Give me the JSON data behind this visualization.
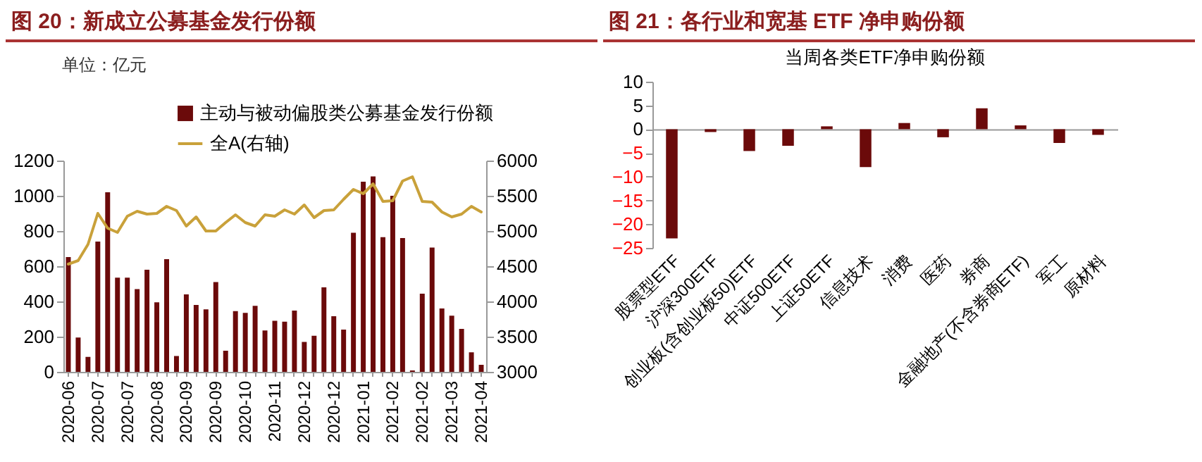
{
  "chart_data": [
    {
      "type": "bar",
      "title": "图 20：新成立公募基金发行份额",
      "annotations": [
        "单位：亿元"
      ],
      "categories": [
        "2020-06",
        null,
        null,
        "2020-07",
        null,
        null,
        "2020-07",
        null,
        null,
        "2020-08",
        null,
        null,
        "2020-09",
        null,
        null,
        "2020-09",
        null,
        null,
        "2020-10",
        null,
        null,
        "2020-11",
        null,
        null,
        "2020-12",
        null,
        null,
        "2020-12",
        null,
        null,
        "2021-01",
        null,
        null,
        "2021-02",
        null,
        null,
        "2021-02",
        null,
        null,
        "2021-03",
        null,
        null,
        "2021-04"
      ],
      "ylim": [
        0,
        1200
      ],
      "yticks": [
        0,
        200,
        400,
        600,
        800,
        1000,
        1200
      ],
      "y2lim": [
        3000,
        6000
      ],
      "y2ticks": [
        3000,
        3500,
        4000,
        4500,
        5000,
        5500,
        6000
      ],
      "legend": "top",
      "series": [
        {
          "name": "主动与被动偏股类公募基金发行份额",
          "color": "#6b0a0a",
          "values": [
            652,
            195,
            85,
            740,
            1020,
            535,
            535,
            470,
            580,
            395,
            640,
            90,
            440,
            380,
            355,
            510,
            120,
            345,
            335,
            375,
            235,
            290,
            285,
            348,
            170,
            205,
            480,
            316,
            240,
            790,
            1080,
            1110,
            765,
            1000,
            760,
            8,
            444,
            706,
            360,
            319,
            244,
            111,
            40
          ]
        },
        {
          "name": "全A(右轴)",
          "type": "line",
          "axis": "y2",
          "color": "#c9a13a",
          "values": [
            4530,
            4580,
            4810,
            5250,
            5040,
            4980,
            5210,
            5280,
            5240,
            5250,
            5350,
            5290,
            5070,
            5200,
            5000,
            5000,
            5120,
            5230,
            5120,
            5070,
            5230,
            5210,
            5300,
            5240,
            5370,
            5190,
            5290,
            5300,
            5450,
            5590,
            5530,
            5670,
            5420,
            5430,
            5710,
            5770,
            5420,
            5410,
            5270,
            5200,
            5240,
            5350,
            5270
          ]
        }
      ]
    },
    {
      "type": "bar",
      "title": "图 21：各行业和宽基 ETF 净申购份额",
      "subtitle": "当周各类ETF净申购份额",
      "categories": [
        "股票型ETF",
        "沪深300ETF",
        "创业板(含创业板50)ETF",
        "中证500ETF",
        "上证50ETF",
        "信息技术",
        "消费",
        "医药",
        "券商",
        "金融地产(不含券商ETF)",
        "军工",
        "原材料"
      ],
      "values": [
        -23,
        -0.6,
        -4.6,
        -3.5,
        0.6,
        -8,
        1.3,
        -1.7,
        4.4,
        0.8,
        -2.9,
        -1.2
      ],
      "color": "#6b0a0a",
      "ylim": [
        -25,
        10
      ],
      "yticks": [
        -25,
        -20,
        -15,
        -10,
        -5,
        0,
        5,
        10
      ]
    }
  ]
}
